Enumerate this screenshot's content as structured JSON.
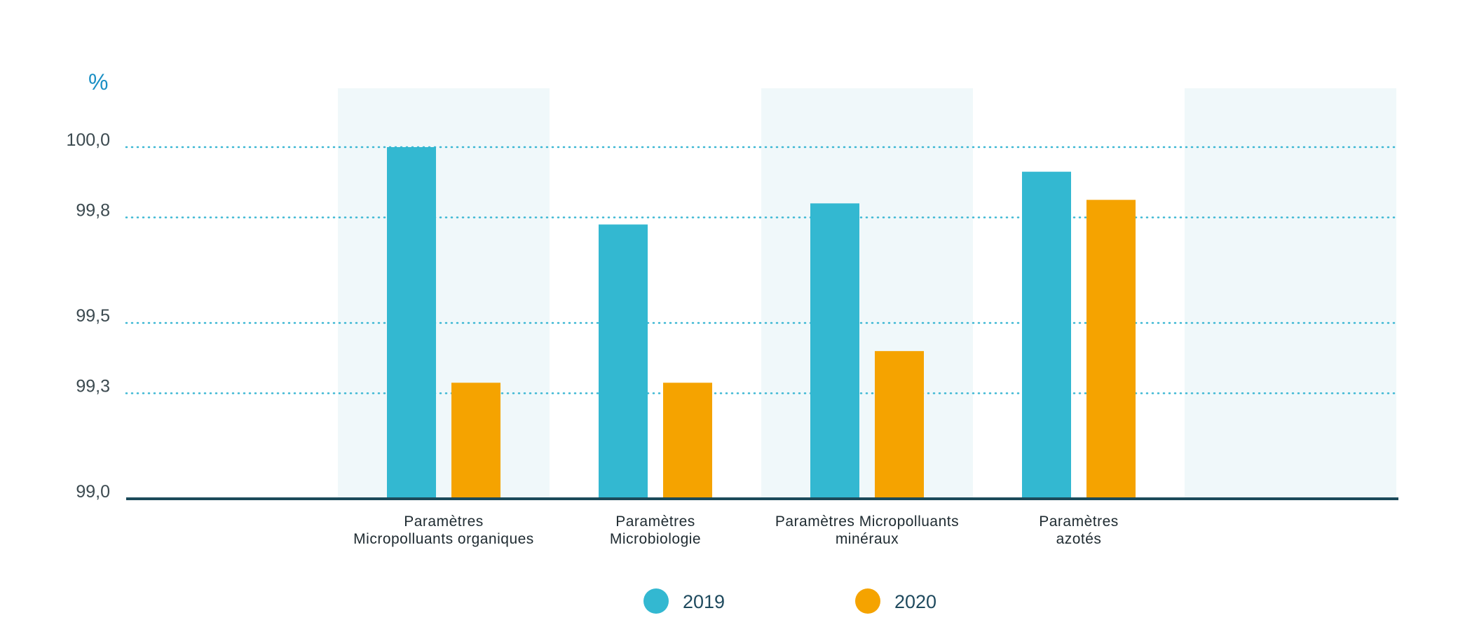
{
  "chart_data": {
    "type": "bar",
    "title": "",
    "xlabel": "",
    "ylabel": "%",
    "ylim": [
      99.0,
      100.0
    ],
    "yticks": [
      {
        "value": 99.0,
        "label": "99,0"
      },
      {
        "value": 99.3,
        "label": "99,3"
      },
      {
        "value": 99.5,
        "label": "99,5"
      },
      {
        "value": 99.8,
        "label": "99,8"
      },
      {
        "value": 100.0,
        "label": "100,0"
      }
    ],
    "categories": [
      [
        "Paramètres",
        "Micropolluants organiques"
      ],
      [
        "Paramètres",
        "Microbiologie"
      ],
      [
        "Paramètres Micropolluants",
        "minéraux"
      ],
      [
        "Paramètres",
        "azotés"
      ]
    ],
    "series": [
      {
        "name": "2019",
        "color": "#33b8d1",
        "values": [
          100.0,
          99.78,
          99.84,
          99.93
        ]
      },
      {
        "name": "2020",
        "color": "#f5a300",
        "values": [
          99.33,
          99.33,
          99.42,
          99.85
        ]
      }
    ],
    "legend": "bottom-center",
    "grid": true
  }
}
